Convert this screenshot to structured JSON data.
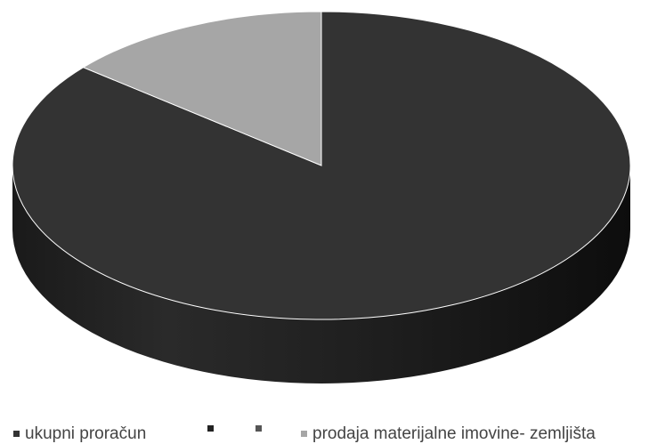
{
  "chart_data": {
    "type": "pie",
    "style": "3d",
    "title": "",
    "start_angle_deg": -90,
    "series": [
      {
        "name": "ukupni proračun",
        "value": 86,
        "color": "#333333"
      },
      {
        "name": "",
        "value": 0,
        "color": "#222222"
      },
      {
        "name": "",
        "value": 0,
        "color": "#555555"
      },
      {
        "name": "prodaja materijalne imovine- zemljišta",
        "value": 14,
        "color": "#a6a6a6"
      }
    ],
    "legend": {
      "position": "bottom"
    }
  }
}
